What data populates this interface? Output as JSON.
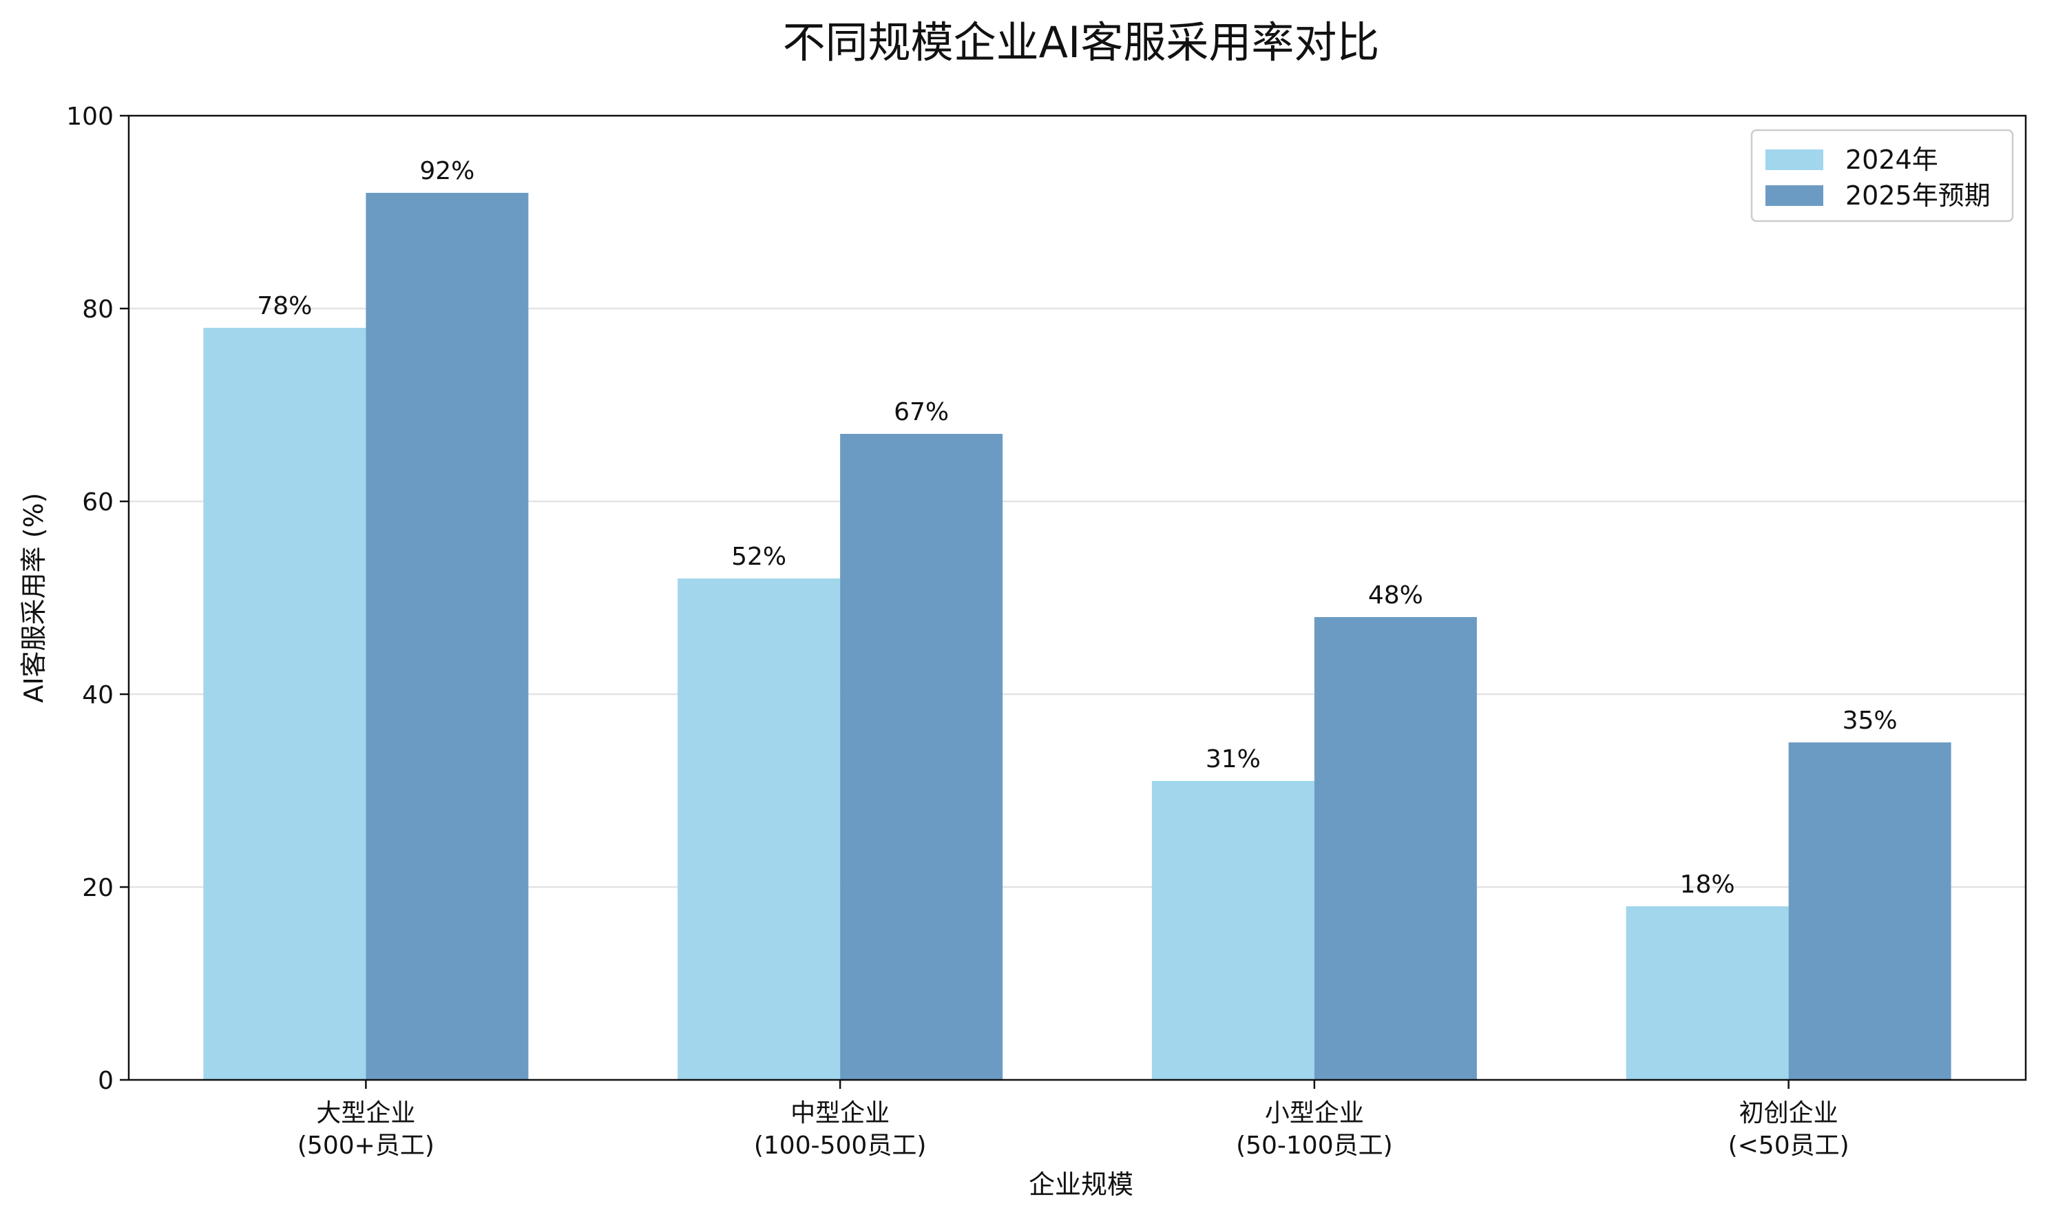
{
  "chart_data": {
    "type": "bar",
    "title": "不同规模企业AI客服采用率对比",
    "xlabel": "企业规模",
    "ylabel": "AI客服采用率 (%)",
    "categories": [
      [
        "大型企业",
        "(500+员工)"
      ],
      [
        "中型企业",
        "(100-500员工)"
      ],
      [
        "小型企业",
        "(50-100员工)"
      ],
      [
        "初创企业",
        "(<50员工)"
      ]
    ],
    "series": [
      {
        "name": "2024年",
        "values": [
          78,
          52,
          31,
          18
        ],
        "labels": [
          "78%",
          "52%",
          "31%",
          "18%"
        ],
        "color": "#a1d6ed"
      },
      {
        "name": "2025年预期",
        "values": [
          92,
          67,
          48,
          35
        ],
        "labels": [
          "92%",
          "67%",
          "48%",
          "35%"
        ],
        "color": "#6b9bc3"
      }
    ],
    "ylim": [
      0,
      100
    ],
    "yticks": [
      0,
      20,
      40,
      60,
      80,
      100
    ],
    "grid": true,
    "legend_position": "top-right"
  }
}
